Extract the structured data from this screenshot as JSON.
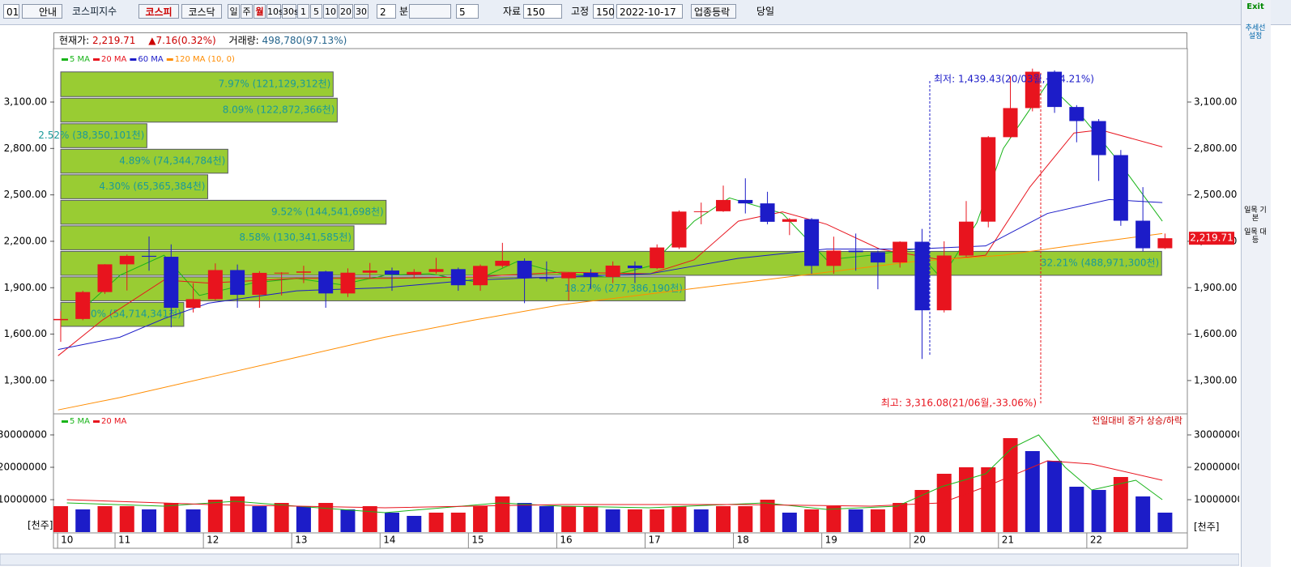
{
  "toolbar": {
    "code": "01",
    "guide": "안내",
    "index_name": "코스피지수",
    "markets": [
      "코스피",
      "코스닥"
    ],
    "periods": [
      "일",
      "주",
      "월",
      "10s",
      "30s",
      "1",
      "5",
      "10",
      "20",
      "30"
    ],
    "minute_value": "2",
    "minute_label": "분",
    "count": "5",
    "data_label": "자료",
    "data_count": "150",
    "fixed_label": "고정",
    "fixed_count": "150",
    "date": "2022-10-17",
    "sector_button": "업종등락",
    "today_label": "당일"
  },
  "header": {
    "price_label": "현재가:",
    "price": "2,219.71",
    "change": "▲7.16(0.32%)",
    "volume_label": "거래량:",
    "volume": "498,780(97.13%)"
  },
  "side_panel": {
    "exit": "Exit",
    "trend": "추세선 설정",
    "ichimoku_basic": "일목 기본",
    "ichimoku_equal": "일목 대등"
  },
  "chart_data": [
    {
      "type": "candlestick",
      "up_color": "#e8141e",
      "down_color": "#1c1cc8",
      "xlim": [
        2010.257,
        2023.083
      ],
      "ylim": [
        1090,
        3435
      ],
      "yticks": [
        {
          "value": 1300,
          "label": "1,300.00"
        },
        {
          "value": 1600,
          "label": "1,600.00"
        },
        {
          "value": 1900,
          "label": "1,900.00"
        },
        {
          "value": 2200,
          "label": "2,200.00"
        },
        {
          "value": 2500,
          "label": "2,500.00"
        },
        {
          "value": 2800,
          "label": "2,800.00"
        },
        {
          "value": 3100,
          "label": "3,100.00"
        }
      ],
      "x": [
        2010.33,
        2010.58,
        2010.83,
        2011.08,
        2011.33,
        2011.58,
        2011.83,
        2012.08,
        2012.33,
        2012.58,
        2012.83,
        2013.08,
        2013.33,
        2013.58,
        2013.83,
        2014.08,
        2014.33,
        2014.58,
        2014.83,
        2015.08,
        2015.33,
        2015.58,
        2015.83,
        2016.08,
        2016.33,
        2016.58,
        2016.83,
        2017.08,
        2017.33,
        2017.58,
        2017.83,
        2018.08,
        2018.33,
        2018.58,
        2018.83,
        2019.08,
        2019.33,
        2019.58,
        2019.83,
        2020.08,
        2020.33,
        2020.58,
        2020.83,
        2021.08,
        2021.33,
        2021.58,
        2021.83,
        2022.08,
        2022.33,
        2022.58,
        2022.83
      ],
      "open": [
        1690,
        1698,
        1872,
        2051,
        2106,
        2100,
        1770,
        1826,
        2014,
        1854,
        1996,
        1997,
        2005,
        1863,
        1997,
        2011,
        1985,
        2002,
        2020,
        1916,
        2041,
        2074,
        1963,
        1961,
        1996,
        1970,
        2043,
        2026,
        2160,
        2392,
        2394,
        2467,
        2445,
        2326,
        2343,
        2041,
        2140,
        2130,
        2063,
        2197,
        1754,
        2108,
        2327,
        2873,
        3061,
        3296,
        3068,
        2977,
        2757,
        2333,
        2155
      ],
      "high": [
        1750,
        1880,
        2052,
        2115,
        2231,
        2180,
        1930,
        2057,
        2050,
        2007,
        2000,
        2042,
        2010,
        2025,
        2060,
        2030,
        2020,
        2093,
        2030,
        2050,
        2190,
        2090,
        2070,
        2000,
        2020,
        2070,
        2070,
        2180,
        2400,
        2450,
        2560,
        2607,
        2520,
        2350,
        2350,
        2230,
        2250,
        2140,
        2200,
        2280,
        2200,
        2460,
        2880,
        3266,
        3316.08,
        3305,
        3080,
        2990,
        2790,
        2550,
        2250
      ],
      "low": [
        1550,
        1690,
        1860,
        1882,
        2010,
        1644,
        1740,
        1820,
        1770,
        1770,
        1850,
        1930,
        1770,
        1840,
        1960,
        1880,
        1960,
        1990,
        1880,
        1880,
        2030,
        1800,
        1940,
        1817,
        1890,
        1930,
        1930,
        2020,
        2150,
        2310,
        2390,
        2380,
        2310,
        2240,
        1990,
        1990,
        2010,
        1890,
        2030,
        1439.43,
        1740,
        2100,
        2290,
        2870,
        3040,
        3030,
        2840,
        2590,
        2300,
        2134,
        2150
      ],
      "close": [
        1698,
        1872,
        2051,
        2106,
        2100,
        1770,
        1826,
        2014,
        1854,
        1996,
        1997,
        2005,
        1863,
        1997,
        2011,
        1985,
        2002,
        2020,
        1916,
        2041,
        2074,
        1963,
        1961,
        1996,
        1970,
        2043,
        2026,
        2160,
        2392,
        2394,
        2467,
        2445,
        2326,
        2343,
        2041,
        2140,
        2130,
        2063,
        2197,
        1754,
        2108,
        2327,
        2873,
        3061,
        3296,
        3068,
        2977,
        2757,
        2333,
        2155,
        2219.71
      ],
      "series": [
        {
          "name": "5 MA",
          "color": "#19b419",
          "x": [
            2010.5,
            2011.0,
            2011.5,
            2011.9,
            2012.5,
            2013.0,
            2013.5,
            2014.0,
            2014.5,
            2015.0,
            2015.5,
            2016.0,
            2016.5,
            2017.0,
            2017.5,
            2017.9,
            2018.5,
            2019.0,
            2019.5,
            2020.0,
            2020.3,
            2020.7,
            2021.0,
            2021.5,
            2021.9,
            2022.3,
            2022.8
          ],
          "values": [
            1720,
            1980,
            2110,
            1850,
            1930,
            1960,
            1920,
            1980,
            1990,
            1940,
            2070,
            1990,
            1970,
            2040,
            2330,
            2480,
            2380,
            2080,
            2110,
            2150,
            1960,
            2320,
            2800,
            3220,
            3000,
            2720,
            2330
          ]
        },
        {
          "name": "20 MA",
          "color": "#e8141e",
          "x": [
            2010.3,
            2010.8,
            2011.5,
            2012.0,
            2013.0,
            2014.0,
            2015.0,
            2016.0,
            2017.0,
            2017.5,
            2018.0,
            2018.5,
            2019.0,
            2019.6,
            2020.3,
            2020.8,
            2021.3,
            2021.8,
            2022.1,
            2022.8
          ],
          "values": [
            1460,
            1690,
            1950,
            1930,
            1960,
            1960,
            1970,
            2000,
            1990,
            2080,
            2330,
            2390,
            2310,
            2150,
            2080,
            2110,
            2550,
            2900,
            2920,
            2810
          ]
        },
        {
          "name": "60 MA",
          "color": "#1c1cc8",
          "x": [
            2010.3,
            2011.0,
            2011.5,
            2012.0,
            2013.0,
            2014.0,
            2015.0,
            2016.0,
            2017.0,
            2018.0,
            2019.0,
            2020.0,
            2020.8,
            2021.5,
            2022.2,
            2022.8
          ],
          "values": [
            1500,
            1580,
            1700,
            1800,
            1880,
            1900,
            1950,
            1970,
            1990,
            2090,
            2150,
            2150,
            2170,
            2380,
            2470,
            2450
          ]
        },
        {
          "name": "120 MA (10, 0)",
          "color": "#ff8c00",
          "x": [
            2010.3,
            2011.0,
            2012.0,
            2013.0,
            2014.0,
            2015.0,
            2016.0,
            2017.0,
            2018.0,
            2019.0,
            2020.0,
            2021.0,
            2022.0,
            2022.8
          ],
          "values": [
            1110,
            1190,
            1320,
            1450,
            1580,
            1690,
            1790,
            1860,
            1930,
            2000,
            2070,
            2110,
            2190,
            2250
          ]
        }
      ],
      "volume_profile": {
        "color": "#99cc33",
        "bins": [
          1645,
          1810,
          1975,
          2140,
          2305,
          2470,
          2635,
          2800,
          2965,
          3130,
          3300
        ],
        "values": [
          3.6,
          18.27,
          32.21,
          8.58,
          9.52,
          4.3,
          4.89,
          2.52,
          8.09,
          7.97
        ],
        "value_labels": [
          "3.60% (54,714,341천)",
          "18.27% (277,386,190천)",
          "32.21% (488,971,300천)",
          "8.58% (130,341,585천)",
          "9.52% (144,541,698천)",
          "4.30% (65,365,384천)",
          "4.89% (74,344,784천)",
          "2.52% (38,350,101천)",
          "8.09% (122,872,366천)",
          "7.97% (121,129,312천)"
        ]
      },
      "annotations": [
        "최저: 1,439.43(20/03월,+54.21%)",
        "최고: 3,316.08(21/06월,-33.06%)"
      ],
      "last_price": {
        "value": 2219.71,
        "label": "2,219.71"
      }
    },
    {
      "type": "bar",
      "up_color": "#e8141e",
      "down_color": "#1c1cc8",
      "unit_label": "[천주]",
      "note": "전일대비 증가 상승/하락",
      "xlim": [
        2010.257,
        2023.083
      ],
      "ylim": [
        0,
        36250000
      ],
      "yticks": [
        10000000,
        20000000,
        30000000
      ],
      "xticks": [
        {
          "value": 2010.35,
          "label": "10"
        },
        {
          "value": 2011,
          "label": "11"
        },
        {
          "value": 2012,
          "label": "12"
        },
        {
          "value": 2013,
          "label": "13"
        },
        {
          "value": 2014,
          "label": "14"
        },
        {
          "value": 2015,
          "label": "15"
        },
        {
          "value": 2016,
          "label": "16"
        },
        {
          "value": 2017,
          "label": "17"
        },
        {
          "value": 2018,
          "label": "18"
        },
        {
          "value": 2019,
          "label": "19"
        },
        {
          "value": 2020,
          "label": "20"
        },
        {
          "value": 2021,
          "label": "21"
        },
        {
          "value": 2022,
          "label": "22"
        }
      ],
      "x": [
        2010.33,
        2010.58,
        2010.83,
        2011.08,
        2011.33,
        2011.58,
        2011.83,
        2012.08,
        2012.33,
        2012.58,
        2012.83,
        2013.08,
        2013.33,
        2013.58,
        2013.83,
        2014.08,
        2014.33,
        2014.58,
        2014.83,
        2015.08,
        2015.33,
        2015.58,
        2015.83,
        2016.08,
        2016.33,
        2016.58,
        2016.83,
        2017.08,
        2017.33,
        2017.58,
        2017.83,
        2018.08,
        2018.33,
        2018.58,
        2018.83,
        2019.08,
        2019.33,
        2019.58,
        2019.83,
        2020.08,
        2020.33,
        2020.58,
        2020.83,
        2021.08,
        2021.33,
        2021.58,
        2021.83,
        2022.08,
        2022.33,
        2022.58,
        2022.83
      ],
      "values": [
        8000000,
        7000000,
        8000000,
        8000000,
        7000000,
        9000000,
        7000000,
        10000000,
        11000000,
        8000000,
        9000000,
        8000000,
        9000000,
        7000000,
        8000000,
        6000000,
        5000000,
        6000000,
        6000000,
        8000000,
        11000000,
        9000000,
        8000000,
        8000000,
        8000000,
        7000000,
        7000000,
        7000000,
        8000000,
        7000000,
        8000000,
        8000000,
        10000000,
        6000000,
        7000000,
        8000000,
        7000000,
        7000000,
        9000000,
        13000000,
        18000000,
        20000000,
        20000000,
        29000000,
        25000000,
        22000000,
        14000000,
        13000000,
        17000000,
        11000000,
        6000000
      ],
      "series": [
        {
          "name": "5 MA",
          "color": "#19b419",
          "x": [
            2010.4,
            2011.5,
            2012.3,
            2013.0,
            2014.0,
            2015.3,
            2016.0,
            2017.0,
            2018.3,
            2019.0,
            2019.8,
            2020.3,
            2020.8,
            2021.1,
            2021.4,
            2021.7,
            2022.0,
            2022.5,
            2022.8
          ],
          "values": [
            9000000,
            8000000,
            9500000,
            8000000,
            6000000,
            9000000,
            8000000,
            7500000,
            9000000,
            7000000,
            8000000,
            14000000,
            18000000,
            26000000,
            30000000,
            20000000,
            13000000,
            16000000,
            10000000
          ]
        },
        {
          "name": "20 MA",
          "color": "#e8141e",
          "x": [
            2010.4,
            2012.0,
            2014.0,
            2016.0,
            2018.0,
            2019.5,
            2020.3,
            2020.8,
            2021.5,
            2022.0,
            2022.8
          ],
          "values": [
            10000000,
            8500000,
            7500000,
            8500000,
            8500000,
            8000000,
            9000000,
            14000000,
            22000000,
            21000000,
            16000000
          ]
        }
      ]
    }
  ]
}
